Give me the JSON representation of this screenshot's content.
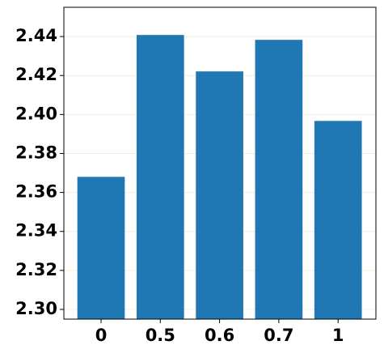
{
  "chart_data": {
    "type": "bar",
    "categories": [
      "0",
      "0.5",
      "0.6",
      "0.7",
      "1"
    ],
    "values": [
      2.368,
      2.4408,
      2.4221,
      2.4383,
      2.3967
    ],
    "color": "#1f77b4",
    "ylim": [
      2.295,
      2.455
    ],
    "yticks": [
      {
        "value": 2.3,
        "label": "2.30"
      },
      2.32,
      2.34,
      2.36,
      2.38,
      {
        "value": 2.4,
        "label": "2.40"
      },
      2.42,
      2.44
    ],
    "grid": true
  }
}
